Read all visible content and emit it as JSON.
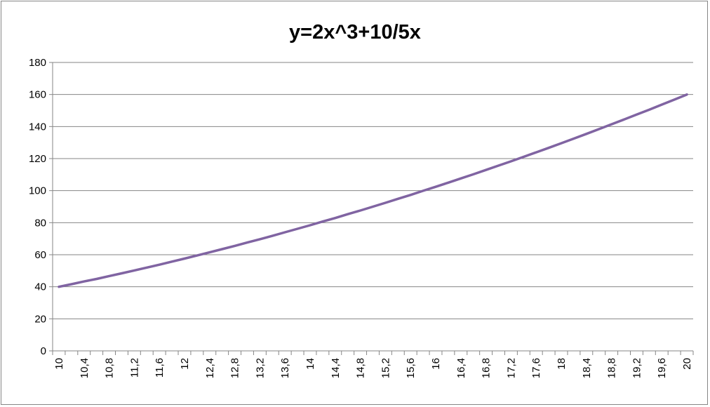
{
  "chart_data": {
    "type": "line",
    "title": "y=2x^3+10/5x",
    "xlabel": "",
    "ylabel": "",
    "x": [
      10,
      10.2,
      10.4,
      10.6,
      10.8,
      11,
      11.2,
      11.4,
      11.6,
      11.8,
      12,
      12.2,
      12.4,
      12.6,
      12.8,
      13,
      13.2,
      13.4,
      13.6,
      13.8,
      14,
      14.2,
      14.4,
      14.6,
      14.8,
      15,
      15.2,
      15.4,
      15.6,
      15.8,
      16,
      16.2,
      16.4,
      16.6,
      16.8,
      17,
      17.2,
      17.4,
      17.6,
      17.8,
      18,
      18.2,
      18.4,
      18.6,
      18.8,
      19,
      19.2,
      19.4,
      19.6,
      19.8,
      20
    ],
    "series": [
      {
        "values": [
          40,
          41.6,
          43.3,
          44.9,
          46.7,
          48.4,
          50.2,
          52,
          53.8,
          55.7,
          57.6,
          59.5,
          61.5,
          63.5,
          65.5,
          67.6,
          69.7,
          71.8,
          74,
          76.2,
          78.4,
          80.7,
          82.9,
          85.3,
          87.6,
          90,
          92.4,
          94.9,
          97.3,
          99.9,
          102.4,
          105,
          107.6,
          110.2,
          112.9,
          115.6,
          118.3,
          121.1,
          123.9,
          126.7,
          129.6,
          132.5,
          135.4,
          138.4,
          141.4,
          144.4,
          147.5,
          150.5,
          153.7,
          156.8,
          160
        ],
        "color": "#8064A2"
      }
    ],
    "x_tick_labels": [
      "10",
      "10,4",
      "10,8",
      "11,2",
      "11,6",
      "12",
      "12,4",
      "12,8",
      "13,2",
      "13,6",
      "14",
      "14,4",
      "14,8",
      "15,2",
      "15,6",
      "16",
      "16,4",
      "16,8",
      "17,2",
      "17,6",
      "18",
      "18,4",
      "18,8",
      "19,2",
      "19,6",
      "20"
    ],
    "y_ticks": [
      0,
      20,
      40,
      60,
      80,
      100,
      120,
      140,
      160,
      180
    ],
    "ylim": [
      0,
      180
    ],
    "grid": "horizontal major",
    "legend": "none"
  }
}
